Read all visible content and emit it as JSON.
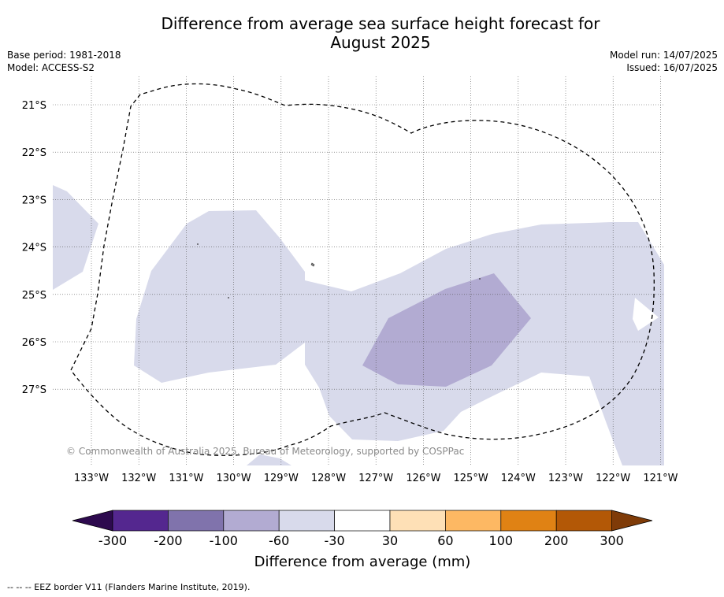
{
  "title": "Difference from average sea surface height forecast for\nAugust 2025",
  "info_left": [
    "Base period: 1981-2018",
    "Model: ACCESS-S2"
  ],
  "info_right": [
    "Model run: 14/07/2025",
    "Issued: 16/07/2025"
  ],
  "map": {
    "lon_labels": [
      "133°W",
      "132°W",
      "131°W",
      "130°W",
      "129°W",
      "128°W",
      "127°W",
      "126°W",
      "125°W",
      "124°W",
      "123°W",
      "122°W",
      "121°W"
    ],
    "lat_labels": [
      "21°S",
      "22°S",
      "23°S",
      "24°S",
      "25°S",
      "26°S",
      "27°S"
    ],
    "copyright": "© Commonwealth of Australia 2025, Bureau of Meteorology, supported by COSPPac",
    "border_style": "dashed black line"
  },
  "colorbar": {
    "title": "Difference from average (mm)",
    "ticks": [
      "-300",
      "-200",
      "-100",
      "-60",
      "-30",
      "30",
      "60",
      "100",
      "200",
      "300"
    ],
    "colors": [
      "#2d0a4e",
      "#54278f",
      "#8073ac",
      "#b2abd2",
      "#d8daeb",
      "#ffffff",
      "#fee0b6",
      "#fdb863",
      "#e08214",
      "#b35806",
      "#7f3b08"
    ]
  },
  "footer": "--  --  -- EEZ border V11 (Flanders Marine Institute, 2019)."
}
